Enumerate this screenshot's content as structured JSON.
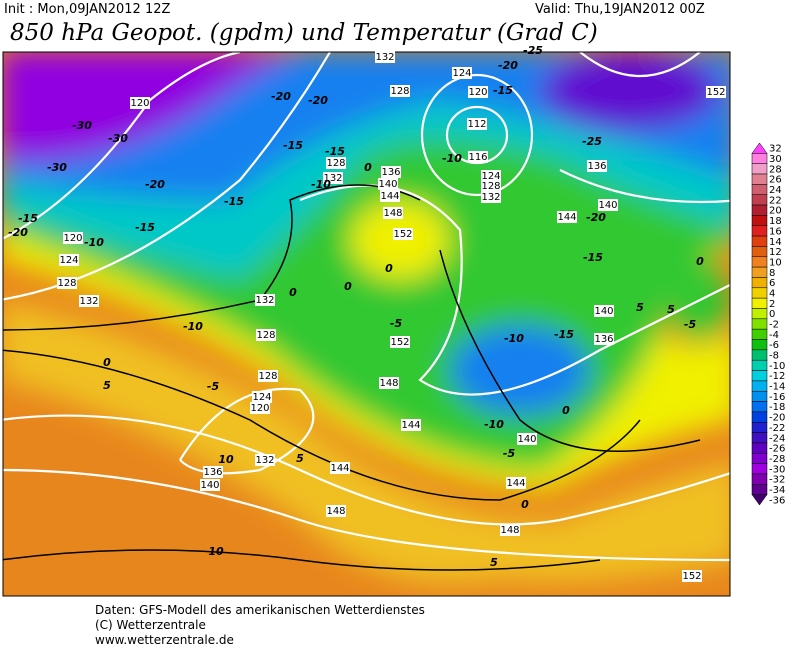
{
  "header": {
    "init": "Init : Mon,09JAN2012 12Z",
    "valid": "Valid: Thu,19JAN2012 00Z",
    "title": "850 hPa Geopot. (gpdm) und Temperatur (Grad C)"
  },
  "colorbar": {
    "ticks": [
      32,
      30,
      28,
      26,
      24,
      22,
      20,
      18,
      16,
      14,
      12,
      10,
      8,
      6,
      4,
      2,
      0,
      -2,
      -4,
      -6,
      -8,
      -10,
      -12,
      -14,
      -16,
      -18,
      -20,
      -22,
      -24,
      -26,
      -28,
      -30,
      -32,
      -34,
      -36
    ],
    "colors": [
      "#ff40ff",
      "#ff80e0",
      "#f0a0c8",
      "#e08090",
      "#d06070",
      "#c04050",
      "#b02030",
      "#c01010",
      "#e02020",
      "#e04010",
      "#e06010",
      "#f08020",
      "#f0a020",
      "#f0b000",
      "#f0d000",
      "#f0f000",
      "#c0f000",
      "#80e000",
      "#40d000",
      "#10c010",
      "#00c070",
      "#00d0b0",
      "#00d0e0",
      "#00b0f0",
      "#0090f0",
      "#0070f0",
      "#0040e0",
      "#2020d0",
      "#4010c0",
      "#6000c0",
      "#8000d0",
      "#a000e0",
      "#8000b0",
      "#600090",
      "#400070"
    ]
  },
  "labels": {
    "height": [
      120,
      124,
      120,
      112,
      116,
      124,
      128,
      132,
      128,
      132,
      136,
      140,
      144,
      152,
      128,
      132,
      136,
      140,
      144,
      148,
      152,
      120,
      124,
      128,
      132,
      132,
      128,
      128,
      124,
      120,
      132,
      136,
      140,
      144,
      148,
      148,
      144,
      140,
      144,
      148,
      152,
      140,
      136,
      152
    ],
    "temperature": [
      -30,
      -30,
      -30,
      -20,
      -15,
      -15,
      -20,
      -10,
      -10,
      -5,
      0,
      5,
      10,
      10,
      5,
      0,
      -15,
      -15,
      -15,
      -10,
      -20,
      -20,
      0,
      0,
      0,
      -5,
      -10,
      -15,
      -10,
      -5,
      0,
      0,
      5,
      -15,
      -20,
      -25,
      -20,
      -15,
      -10,
      0,
      5,
      -5,
      5,
      -25
    ]
  },
  "footer": [
    "Daten: GFS-Modell des amerikanischen Wetterdienstes",
    "(C) Wetterzentrale",
    "www.wetterzentrale.de"
  ]
}
